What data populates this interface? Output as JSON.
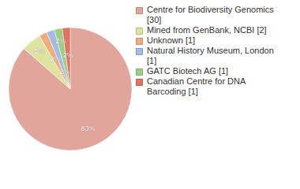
{
  "chart_data": {
    "type": "pie",
    "categories": [
      "Centre for Biodiversity Genomics [30]",
      "Mined from GenBank, NCBI [2]",
      "Unknown [1]",
      "Natural History Museum, London [1]",
      "GATC Biotech AG [1]",
      "Canadian Centre for DNA Barcoding [1]"
    ],
    "values": [
      83,
      5,
      2,
      2,
      2,
      2
    ],
    "value_labels": [
      "83%",
      "5%",
      "2%",
      "2%",
      "2%",
      "2%"
    ],
    "colors": [
      "#e2a59c",
      "#dfe3a0",
      "#f1ab7c",
      "#a2bde4",
      "#9fcd86",
      "#e0735f"
    ],
    "data_labels": true,
    "legend": "upper right"
  }
}
